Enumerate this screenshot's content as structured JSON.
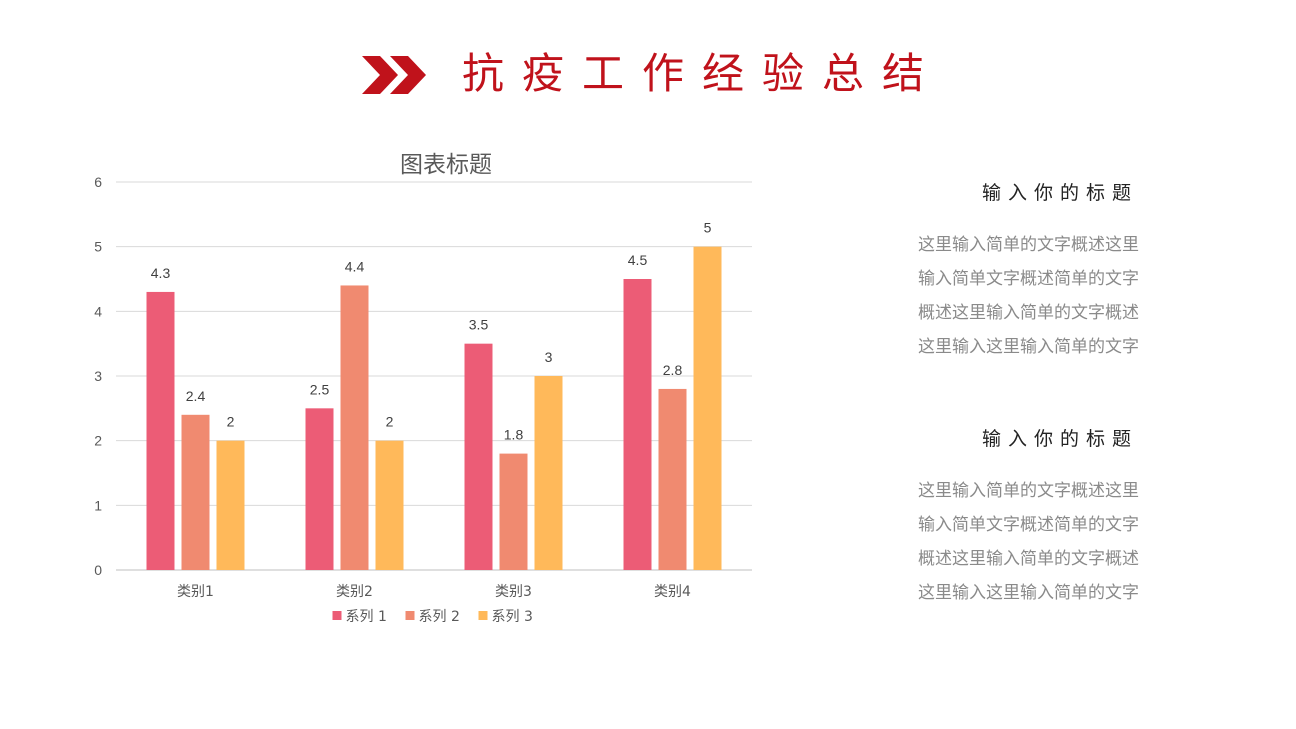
{
  "header": {
    "title": "抗疫工作经验总结",
    "accent_color": "#c0121b",
    "icon": "double-chevron-right-icon"
  },
  "chart_data": {
    "type": "bar",
    "title": "图表标题",
    "categories": [
      "类别1",
      "类别2",
      "类别3",
      "类别4"
    ],
    "series": [
      {
        "name": "系列 1",
        "values": [
          4.3,
          2.5,
          3.5,
          4.5
        ],
        "color": "#ec5c76"
      },
      {
        "name": "系列 2",
        "values": [
          2.4,
          4.4,
          1.8,
          2.8
        ],
        "color": "#f08a70"
      },
      {
        "name": "系列 3",
        "values": [
          2,
          2,
          3,
          5
        ],
        "color": "#ffb95a"
      }
    ],
    "ylim": [
      0,
      6
    ],
    "yticks": [
      0,
      1,
      2,
      3,
      4,
      5,
      6
    ],
    "grid": true,
    "legend": "bottom",
    "data_labels": true
  },
  "sections": [
    {
      "title": "输入你的标题",
      "text": "这里输入简单的文字概述这里\n输入简单文字概述简单的文字\n概述这里输入简单的文字概述\n这里输入这里输入简单的文字"
    },
    {
      "title": "输入你的标题",
      "text": "这里输入简单的文字概述这里\n输入简单文字概述简单的文字\n概述这里输入简单的文字概述\n这里输入这里输入简单的文字"
    }
  ]
}
